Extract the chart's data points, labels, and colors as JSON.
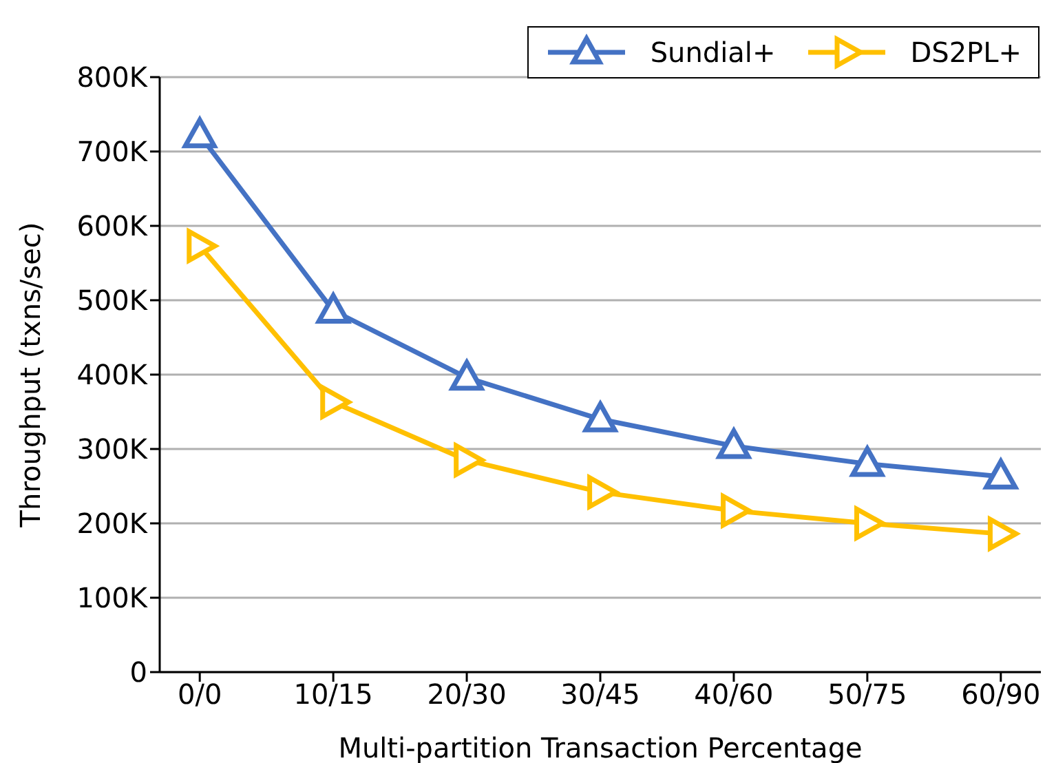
{
  "chart_data": {
    "type": "line",
    "xlabel": "Multi-partition Transaction Percentage",
    "ylabel": "Throughput (txns/sec)",
    "categories": [
      "0/0",
      "10/15",
      "20/30",
      "30/45",
      "40/60",
      "50/75",
      "60/90"
    ],
    "series": [
      {
        "name": "Sundial+",
        "color": "#4472c4",
        "marker": "triangle",
        "values": [
          722000,
          486000,
          396000,
          340000,
          304000,
          280000,
          263000
        ]
      },
      {
        "name": "DS2PL+",
        "color": "#ffc000",
        "marker": "triangle-right",
        "values": [
          573000,
          363000,
          285000,
          242000,
          217000,
          200000,
          186000
        ]
      }
    ],
    "ylim": [
      0,
      800000
    ],
    "yticks": [
      0,
      {
        "value": 100000,
        "label": "100K"
      },
      {
        "value": 200000,
        "label": "200K"
      },
      {
        "value": 300000,
        "label": "300K"
      },
      {
        "value": 400000,
        "label": "400K"
      },
      {
        "value": 500000,
        "label": "500K"
      },
      {
        "value": 600000,
        "label": "600K"
      },
      {
        "value": 700000,
        "label": "700K"
      },
      {
        "value": 800000,
        "label": "800K"
      }
    ],
    "grid": "y",
    "legend": "top right",
    "line_style": "solid"
  }
}
